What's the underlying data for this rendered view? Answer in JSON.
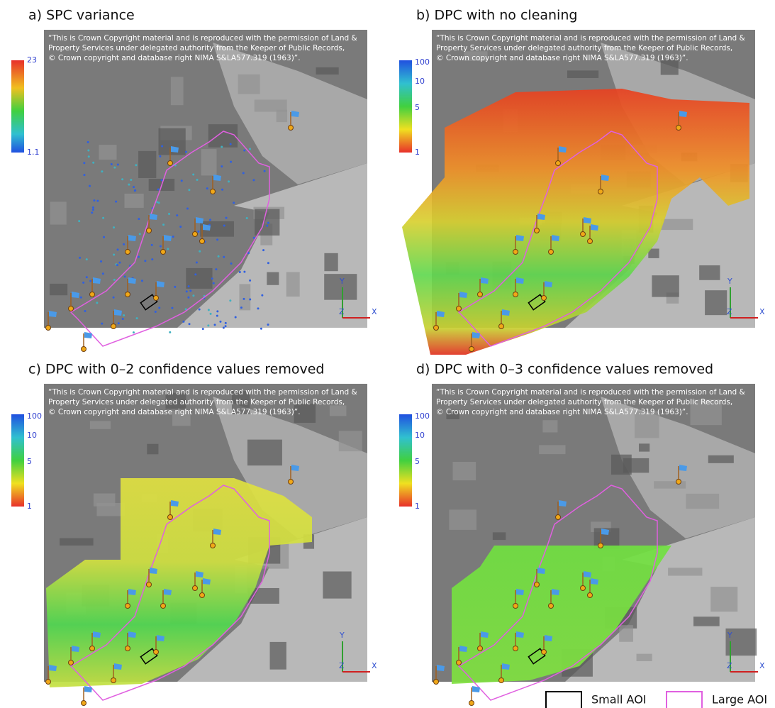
{
  "panels": [
    {
      "title": "a) SPC variance",
      "colorbar": [
        "23",
        "1.1"
      ]
    },
    {
      "title": "b) DPC with no cleaning",
      "colorbar": [
        "100",
        "10",
        "5",
        "1"
      ]
    },
    {
      "title": "c) DPC with 0–2 confidence values removed",
      "colorbar": [
        "100",
        "10",
        "5",
        "1"
      ]
    },
    {
      "title": "d) DPC with 0–3 confidence values removed",
      "colorbar": [
        "100",
        "10",
        "5",
        "1"
      ]
    }
  ],
  "copyright": [
    "“This is Crown Copyright material and is reproduced with the permission of Land &",
    "Property Services under delegated authority from the Keeper of Public Records,",
    "© Crown copyright and database right NIMA S&LA577.319 (1963)”."
  ],
  "axes": {
    "y": "Y",
    "z": "Z",
    "x": "X"
  },
  "legend": [
    {
      "label": "Small AOI"
    },
    {
      "label": "Large AOI"
    }
  ]
}
